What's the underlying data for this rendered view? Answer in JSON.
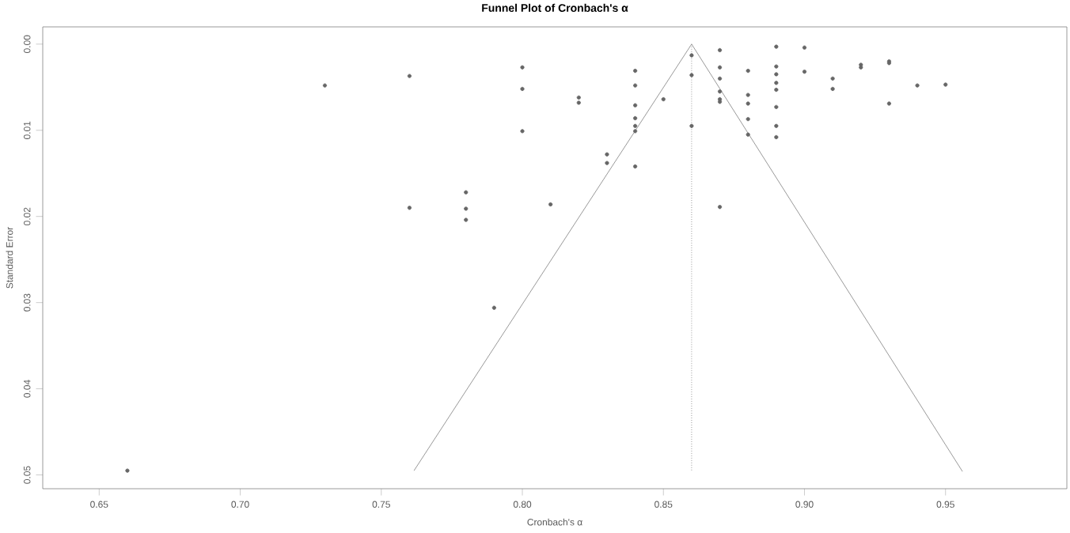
{
  "chart_data": {
    "type": "scatter",
    "title": "Funnel Plot of Cronbach's α",
    "xlabel": "Cronbach's α",
    "ylabel": "Standard Error",
    "xlim": [
      0.63,
      0.993
    ],
    "ylim": [
      0.0516,
      -0.002
    ],
    "xticks": [
      {
        "value": 0.65,
        "label": "0.65"
      },
      {
        "value": 0.7,
        "label": "0.70"
      },
      {
        "value": 0.75,
        "label": "0.75"
      },
      {
        "value": 0.8,
        "label": "0.80"
      },
      {
        "value": 0.85,
        "label": "0.85"
      },
      {
        "value": 0.9,
        "label": "0.90"
      },
      {
        "value": 0.95,
        "label": "0.95"
      }
    ],
    "yticks": [
      {
        "value": 0.0,
        "label": "0.00"
      },
      {
        "value": 0.01,
        "label": "0.01"
      },
      {
        "value": 0.02,
        "label": "0.02"
      },
      {
        "value": 0.03,
        "label": "0.03"
      },
      {
        "value": 0.04,
        "label": "0.04"
      },
      {
        "value": 0.05,
        "label": "0.05"
      }
    ],
    "grid": false,
    "series": [
      {
        "color": "#666666",
        "marker": "circle",
        "x": [
          0.73,
          0.76,
          0.76,
          0.8,
          0.8,
          0.8,
          0.82,
          0.82,
          0.84,
          0.84,
          0.84,
          0.84,
          0.84,
          0.84,
          0.84,
          0.85,
          0.83,
          0.83,
          0.78,
          0.78,
          0.78,
          0.81,
          0.86,
          0.86,
          0.86,
          0.87,
          0.87,
          0.87,
          0.87,
          0.87,
          0.87,
          0.87,
          0.88,
          0.88,
          0.88,
          0.88,
          0.88,
          0.89,
          0.89,
          0.89,
          0.89,
          0.89,
          0.89,
          0.89,
          0.89,
          0.9,
          0.9,
          0.91,
          0.91,
          0.92,
          0.92,
          0.93,
          0.93,
          0.93,
          0.94,
          0.95,
          0.79,
          0.66
        ],
        "values": [
          0.0048,
          0.0037,
          0.019,
          0.0027,
          0.0052,
          0.0101,
          0.0062,
          0.0068,
          0.0031,
          0.0048,
          0.0071,
          0.0086,
          0.0095,
          0.0101,
          0.0142,
          0.0064,
          0.0128,
          0.0138,
          0.0172,
          0.0191,
          0.0204,
          0.0186,
          0.0013,
          0.0036,
          0.0095,
          0.0007,
          0.0027,
          0.004,
          0.0055,
          0.0064,
          0.0067,
          0.0189,
          0.0031,
          0.0059,
          0.0069,
          0.0087,
          0.0105,
          0.0003,
          0.0026,
          0.0035,
          0.0045,
          0.0053,
          0.0073,
          0.0095,
          0.0108,
          0.0004,
          0.0032,
          0.004,
          0.0052,
          0.0024,
          0.0027,
          0.002,
          0.0022,
          0.0069,
          0.0048,
          0.0047,
          0.0306,
          0.0495
        ]
      },
      {
        "type": "line",
        "color": "#999999",
        "line_style": "solid",
        "marker": "none",
        "x": [
          0.7616,
          0.86,
          0.956
        ],
        "values": [
          0.0495,
          0.0,
          0.0496
        ]
      },
      {
        "type": "line",
        "color": "#999999",
        "line_style": "dotted",
        "marker": "none",
        "x": [
          0.86,
          0.86
        ],
        "values": [
          0.0,
          0.0495
        ]
      }
    ]
  }
}
